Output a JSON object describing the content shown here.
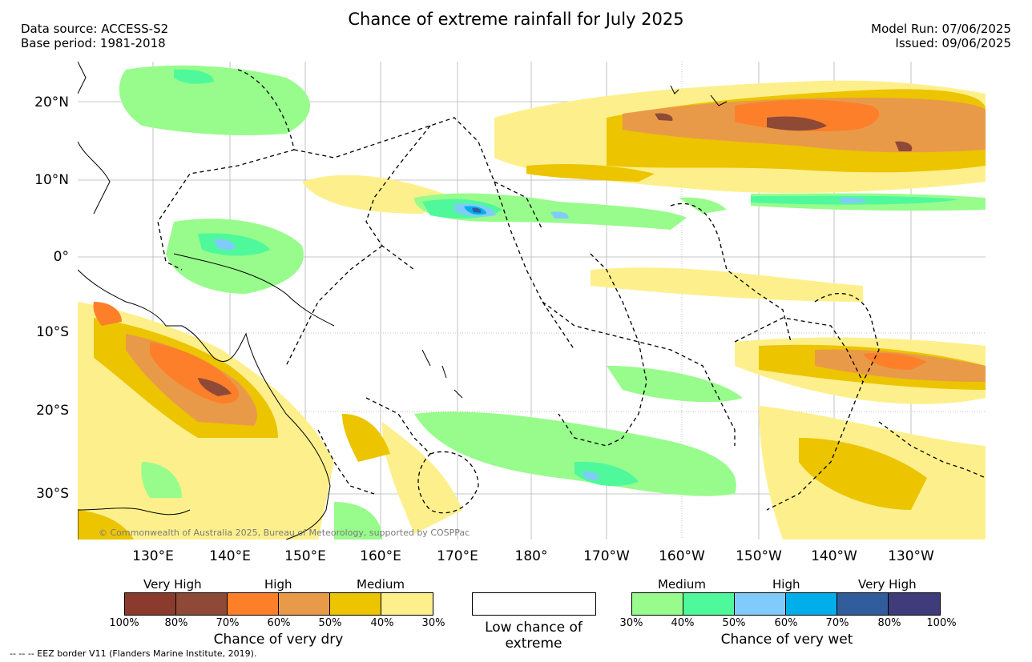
{
  "header": {
    "title": "Chance of extreme rainfall for July 2025",
    "data_source": "Data source: ACCESS-S2",
    "base_period": "Base period: 1981-2018",
    "model_run": "Model Run: 07/06/2025",
    "issued": "Issued: 09/06/2025"
  },
  "map": {
    "lat_labels": [
      "20°N",
      "10°N",
      "0°",
      "10°S",
      "20°S",
      "30°S"
    ],
    "lon_labels": [
      "130°E",
      "140°E",
      "150°E",
      "160°E",
      "170°E",
      "180°",
      "170°W",
      "160°W",
      "150°W",
      "140°W",
      "130°W"
    ],
    "copyright": "© Commonwealth of Australia 2025, Bureau of Meteorology, supported by COSPPac"
  },
  "legend": {
    "dry": {
      "group_labels": [
        "Very High",
        "High",
        "Medium"
      ],
      "colors": [
        "#8b3a2e",
        "#8e4a36",
        "#fd7f2a",
        "#e99a48",
        "#ecc400",
        "#fdf08c"
      ],
      "ticks": [
        "100%",
        "80%",
        "70%",
        "60%",
        "50%",
        "40%",
        "30%"
      ],
      "label": "Chance of very dry"
    },
    "low": {
      "label": "Low chance of extreme"
    },
    "wet": {
      "group_labels": [
        "Medium",
        "High",
        "Very High"
      ],
      "colors": [
        "#98fc8c",
        "#4ff99b",
        "#80cbfb",
        "#00aee9",
        "#315d9c",
        "#3e3c7a"
      ],
      "ticks": [
        "30%",
        "40%",
        "50%",
        "60%",
        "70%",
        "80%",
        "100%"
      ],
      "label": "Chance of very wet"
    },
    "eez_note": "--  --  -- EEZ border V11 (Flanders Marine Institute, 2019)."
  }
}
